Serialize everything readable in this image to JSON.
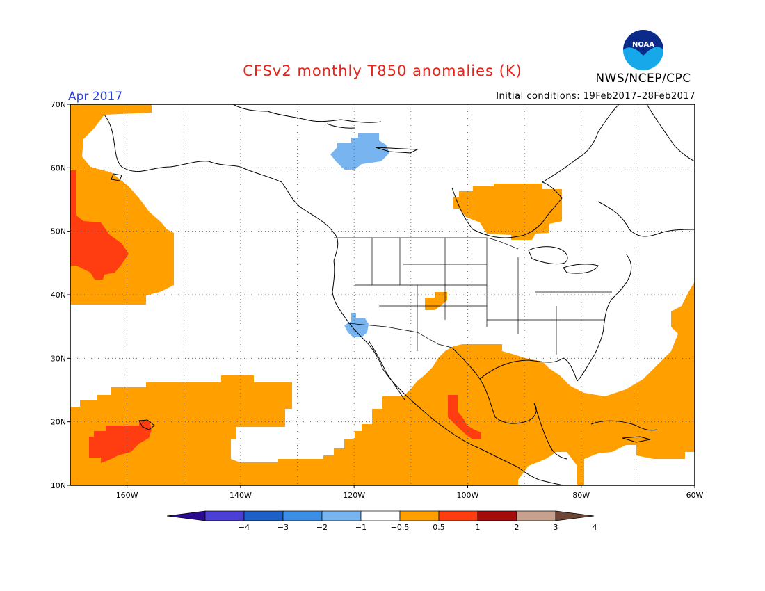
{
  "header": {
    "title": "CFSv2 monthly T850 anomalies (K)",
    "month": "Apr 2017",
    "initial_conditions": "Initial conditions: 19Feb2017–28Feb2017",
    "organization": "NWS/NCEP/CPC",
    "logo_text": "NOAA"
  },
  "map": {
    "lat_labels": [
      "70N",
      "60N",
      "50N",
      "40N",
      "30N",
      "20N",
      "10N"
    ],
    "lon_labels": [
      "160W",
      "140W",
      "120W",
      "100W",
      "80W",
      "60W"
    ]
  },
  "colorbar": {
    "labels": [
      "−4",
      "−3",
      "−2",
      "−1",
      "−0.5",
      "0.5",
      "1",
      "2",
      "3",
      "4"
    ],
    "colors": [
      "#2a0a8f",
      "#4b3fd6",
      "#1f5fc8",
      "#3d8fe6",
      "#78b4f0",
      "#ffffff",
      "#ff9f00",
      "#ff3d10",
      "#a50b0b",
      "#c7a08e",
      "#6e4636"
    ]
  },
  "colors": {
    "warm_light": "#ff9f00",
    "warm_strong": "#ff3d10",
    "cool_light": "#78b4f0",
    "title": "#e8231a",
    "month": "#2b3fe0"
  }
}
